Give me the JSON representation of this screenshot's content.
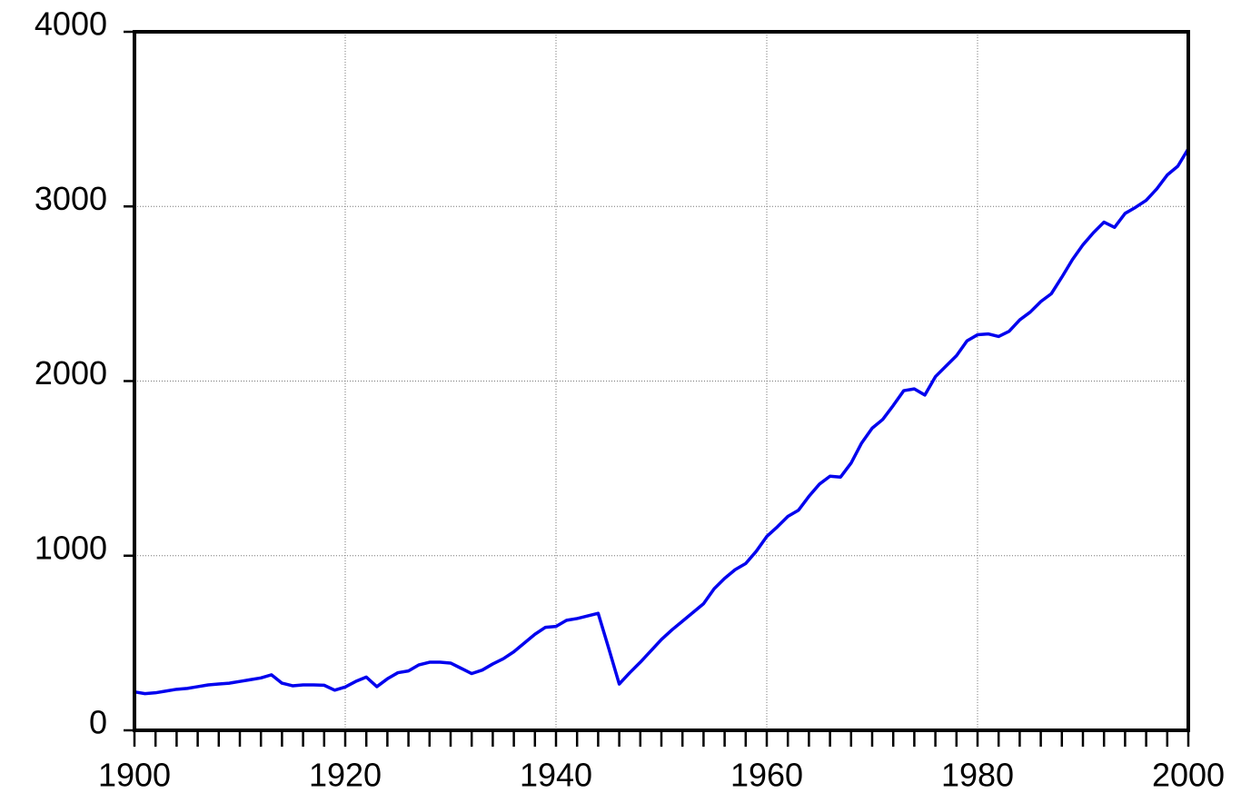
{
  "chart_data": {
    "type": "line",
    "x": [
      1900,
      1901,
      1902,
      1903,
      1904,
      1905,
      1906,
      1907,
      1908,
      1909,
      1910,
      1911,
      1912,
      1913,
      1914,
      1915,
      1916,
      1917,
      1918,
      1919,
      1920,
      1921,
      1922,
      1923,
      1924,
      1925,
      1926,
      1927,
      1928,
      1929,
      1930,
      1931,
      1932,
      1933,
      1934,
      1935,
      1936,
      1937,
      1938,
      1939,
      1940,
      1941,
      1942,
      1943,
      1944,
      1945,
      1946,
      1947,
      1948,
      1949,
      1950,
      1951,
      1952,
      1953,
      1954,
      1955,
      1956,
      1957,
      1958,
      1959,
      1960,
      1961,
      1962,
      1963,
      1964,
      1965,
      1966,
      1967,
      1968,
      1969,
      1970,
      1971,
      1972,
      1973,
      1974,
      1975,
      1976,
      1977,
      1978,
      1979,
      1980,
      1981,
      1982,
      1983,
      1984,
      1985,
      1986,
      1987,
      1988,
      1989,
      1990,
      1991,
      1992,
      1993,
      1994,
      1995,
      1996,
      1997,
      1998,
      1999,
      2000
    ],
    "series": [
      {
        "color": "#0000ee",
        "values": [
          220,
          210,
          215,
          225,
          235,
          240,
          250,
          260,
          265,
          270,
          280,
          290,
          300,
          318,
          270,
          255,
          260,
          260,
          258,
          230,
          248,
          280,
          305,
          250,
          295,
          330,
          340,
          375,
          390,
          390,
          385,
          355,
          325,
          345,
          380,
          410,
          450,
          500,
          550,
          590,
          595,
          630,
          640,
          655,
          670,
          470,
          265,
          330,
          390,
          455,
          520,
          575,
          625,
          675,
          725,
          810,
          870,
          920,
          955,
          1025,
          1110,
          1165,
          1225,
          1260,
          1340,
          1410,
          1455,
          1450,
          1530,
          1645,
          1730,
          1780,
          1860,
          1945,
          1955,
          1920,
          2025,
          2085,
          2145,
          2230,
          2265,
          2270,
          2255,
          2285,
          2350,
          2395,
          2455,
          2500,
          2595,
          2695,
          2780,
          2850,
          2910,
          2880,
          2960,
          2995,
          3035,
          3100,
          3180,
          3230,
          3330
        ]
      }
    ],
    "xlim": [
      1900,
      2000
    ],
    "xticks": [
      1900,
      1920,
      1940,
      1960,
      1980,
      2000
    ],
    "xminor_ticks": [
      1902,
      1904,
      1906,
      1908,
      1910,
      1912,
      1914,
      1916,
      1918,
      1922,
      1924,
      1926,
      1928,
      1930,
      1932,
      1934,
      1936,
      1938,
      1942,
      1944,
      1946,
      1948,
      1950,
      1952,
      1954,
      1956,
      1958,
      1962,
      1964,
      1966,
      1968,
      1970,
      1972,
      1974,
      1976,
      1978,
      1982,
      1984,
      1986,
      1988,
      1990,
      1992,
      1994,
      1996,
      1998
    ],
    "ylim": [
      0,
      4000
    ],
    "yticks": [
      0,
      1000,
      2000,
      3000,
      4000
    ],
    "grid": true
  }
}
